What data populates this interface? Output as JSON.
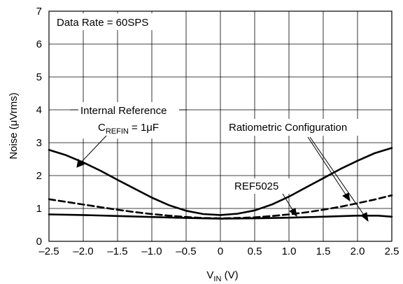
{
  "chart_data": {
    "type": "line",
    "xlabel_main": "V",
    "xlabel_sub": "IN",
    "xlabel_unit": " (V)",
    "ylabel_prefix": "Noise (",
    "ylabel_mu": "μ",
    "ylabel_unit": "Vrms)",
    "xlim": [
      -2.5,
      2.5
    ],
    "ylim": [
      0,
      7
    ],
    "grid": true,
    "x_ticks": [
      -2.5,
      -2.0,
      -1.5,
      -1.0,
      -0.5,
      0,
      0.5,
      1.0,
      1.5,
      2.0,
      2.5
    ],
    "x_tick_labels": [
      "–2.5",
      "–2.0",
      "–1.5",
      "–1.0",
      "–0.5",
      "0",
      "0.5",
      "1.0",
      "1.5",
      "2.0",
      "2.5"
    ],
    "y_ticks": [
      0,
      1,
      2,
      3,
      4,
      5,
      6,
      7
    ],
    "y_tick_labels": [
      "0",
      "1",
      "2",
      "3",
      "4",
      "5",
      "6",
      "7"
    ],
    "annotations": {
      "data_rate": "Data Rate = 60SPS",
      "internal_reference": "Internal Reference",
      "crefin_c": "C",
      "crefin_sub": "REFIN",
      "crefin_value": " = 1μF",
      "ratiometric": "Ratiometric Configuration",
      "ref5025": "REF5025"
    },
    "series": [
      {
        "x": [
          -2.5,
          -2.25,
          -2.0,
          -1.75,
          -1.5,
          -1.25,
          -1.0,
          -0.75,
          -0.5,
          -0.25,
          0,
          0.25,
          0.5,
          0.75,
          1.0,
          1.25,
          1.5,
          1.75,
          2.0,
          2.25,
          2.5
        ],
        "values": [
          2.78,
          2.62,
          2.4,
          2.15,
          1.87,
          1.6,
          1.33,
          1.1,
          0.93,
          0.83,
          0.8,
          0.84,
          0.94,
          1.12,
          1.36,
          1.64,
          1.92,
          2.2,
          2.45,
          2.68,
          2.84
        ],
        "style": "solid"
      },
      {
        "x": [
          -2.5,
          -2.25,
          -2.0,
          -1.75,
          -1.5,
          -1.25,
          -1.0,
          -0.75,
          -0.5,
          -0.25,
          0,
          0.25,
          0.5,
          0.75,
          1.0,
          1.25,
          1.5,
          1.75,
          2.0,
          2.25,
          2.5
        ],
        "values": [
          1.28,
          1.2,
          1.12,
          1.04,
          0.96,
          0.89,
          0.83,
          0.78,
          0.74,
          0.71,
          0.7,
          0.71,
          0.73,
          0.77,
          0.82,
          0.88,
          0.96,
          1.05,
          1.16,
          1.27,
          1.4
        ],
        "style": "dashed"
      },
      {
        "x": [
          -2.5,
          -2.0,
          -1.5,
          -1.0,
          -0.5,
          0,
          0.5,
          1.0,
          1.5,
          2.0,
          2.3,
          2.5
        ],
        "values": [
          0.82,
          0.8,
          0.77,
          0.74,
          0.71,
          0.69,
          0.7,
          0.72,
          0.75,
          0.78,
          0.78,
          0.75
        ],
        "style": "solid"
      }
    ],
    "colors": {
      "line": "#000000",
      "grid": "#000000"
    }
  }
}
